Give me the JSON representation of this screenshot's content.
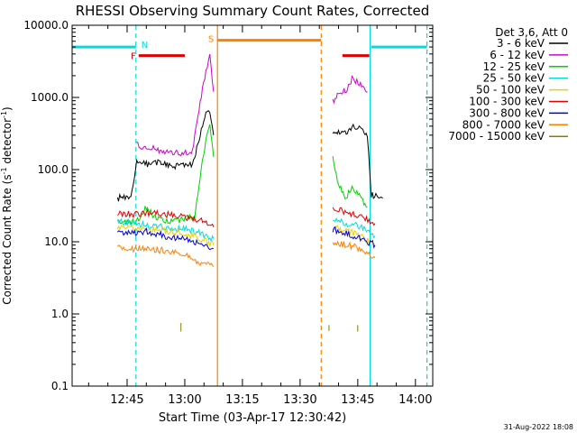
{
  "chart_data": {
    "type": "line",
    "title": "RHESSI Observing Summary Count Rates, Corrected",
    "xlabel": "Start Time (03-Apr-17 12:30:42)",
    "ylabel_main": "Corrected Count Rate (s",
    "ylabel_sup1": "-1",
    "ylabel_mid": " detector",
    "ylabel_sup2": "-1",
    "ylabel_end": ")",
    "yscale": "log",
    "ylim": [
      0.1,
      10000
    ],
    "xlim_minutes": [
      750.7,
      844.5
    ],
    "yticks": [
      "10000.0",
      "1000.0",
      "100.0",
      "10.0",
      "1.0",
      "0.1"
    ],
    "xticks": [
      {
        "label": "12:45",
        "t": 765
      },
      {
        "label": "13:00",
        "t": 780
      },
      {
        "label": "13:15",
        "t": 795
      },
      {
        "label": "13:30",
        "t": 810
      },
      {
        "label": "13:45",
        "t": 825
      },
      {
        "label": "14:00",
        "t": 840
      }
    ],
    "legend_title": "Det 3,6, Att 0",
    "legend_position": "top-right",
    "series": [
      {
        "name": "3 - 6 keV",
        "color": "#000000",
        "segments": [
          [
            [
              762.5,
              40
            ],
            [
              764.5,
              42
            ],
            [
              766,
              40
            ],
            [
              767.5,
              130
            ],
            [
              770,
              120
            ],
            [
              773,
              125
            ],
            [
              776,
              115
            ],
            [
              779,
              110
            ],
            [
              782,
              120
            ],
            [
              784,
              300
            ],
            [
              785.5,
              600
            ],
            [
              786.5,
              680
            ],
            [
              787.5,
              300
            ]
          ],
          [
            [
              818.5,
              300
            ],
            [
              820,
              340
            ],
            [
              822,
              330
            ],
            [
              823.5,
              400
            ],
            [
              826,
              380
            ],
            [
              827.5,
              300
            ],
            [
              828.5,
              45
            ],
            [
              831.5,
              40
            ]
          ]
        ]
      },
      {
        "name": "6 - 12 keV",
        "color": "#d200d2",
        "segments": [
          [
            [
              767.5,
              220
            ],
            [
              770,
              200
            ],
            [
              773,
              190
            ],
            [
              776,
              175
            ],
            [
              779,
              165
            ],
            [
              782,
              180
            ],
            [
              784,
              900
            ],
            [
              785.5,
              2200
            ],
            [
              786.5,
              3800
            ],
            [
              787.5,
              1200
            ]
          ],
          [
            [
              818.5,
              900
            ],
            [
              820,
              1100
            ],
            [
              822,
              1300
            ],
            [
              823.5,
              1800
            ],
            [
              826,
              1500
            ],
            [
              827.5,
              1200
            ]
          ]
        ]
      },
      {
        "name": "12 - 25 keV",
        "color": "#00d200",
        "segments": [
          [
            [
              762.5,
              20
            ],
            [
              766,
              19
            ],
            [
              768,
              20
            ],
            [
              770,
              30
            ],
            [
              772,
              22
            ],
            [
              775,
              20
            ],
            [
              778,
              19
            ],
            [
              781,
              22
            ],
            [
              782.5,
              20
            ],
            [
              784,
              80
            ],
            [
              785.5,
              250
            ],
            [
              786.5,
              420
            ],
            [
              787.5,
              150
            ]
          ],
          [
            [
              818.5,
              150
            ],
            [
              820,
              60
            ],
            [
              822,
              40
            ],
            [
              823.5,
              60
            ],
            [
              826,
              40
            ],
            [
              827.5,
              30
            ]
          ]
        ]
      },
      {
        "name": "25 - 50 keV",
        "color": "#00dcdc",
        "segments": [
          [
            [
              762.5,
              20
            ],
            [
              766,
              18
            ],
            [
              770,
              17
            ],
            [
              775,
              16
            ],
            [
              780,
              15
            ],
            [
              784,
              13
            ],
            [
              787.5,
              11
            ]
          ],
          [
            [
              818.5,
              20
            ],
            [
              822,
              18
            ],
            [
              826,
              16
            ],
            [
              829.5,
              12
            ]
          ]
        ]
      },
      {
        "name": "50 - 100 keV",
        "color": "#e6d200",
        "segments": [
          [
            [
              762.5,
              16
            ],
            [
              766,
              15
            ],
            [
              770,
              15
            ],
            [
              775,
              14
            ],
            [
              780,
              13
            ],
            [
              784,
              11
            ],
            [
              787.5,
              9
            ]
          ],
          [
            [
              818.5,
              16
            ],
            [
              822,
              14
            ],
            [
              826,
              12
            ],
            [
              829.5,
              9
            ]
          ]
        ]
      },
      {
        "name": "100 - 300 keV",
        "color": "#e00000",
        "segments": [
          [
            [
              762.5,
              25
            ],
            [
              766,
              24
            ],
            [
              770,
              25
            ],
            [
              775,
              24
            ],
            [
              780,
              22
            ],
            [
              784,
              20
            ],
            [
              787.5,
              16
            ]
          ],
          [
            [
              818.5,
              30
            ],
            [
              822,
              26
            ],
            [
              826,
              22
            ],
            [
              829.5,
              18
            ]
          ]
        ]
      },
      {
        "name": "300 - 800 keV",
        "color": "#0000e0",
        "segments": [
          [
            [
              762.5,
              14
            ],
            [
              766,
              13
            ],
            [
              770,
              14
            ],
            [
              775,
              12
            ],
            [
              780,
              11
            ],
            [
              784,
              9.5
            ],
            [
              787.5,
              8
            ]
          ],
          [
            [
              818.5,
              15
            ],
            [
              822,
              13
            ],
            [
              826,
              11
            ],
            [
              829.5,
              9
            ]
          ]
        ]
      },
      {
        "name": "800 - 7000 keV",
        "color": "#ff8000",
        "segments": [
          [
            [
              762.5,
              8.5
            ],
            [
              766,
              8
            ],
            [
              770,
              8
            ],
            [
              775,
              7.5
            ],
            [
              780,
              6.5
            ],
            [
              784,
              5
            ],
            [
              787.5,
              4.5
            ]
          ],
          [
            [
              818.5,
              10
            ],
            [
              822,
              9
            ],
            [
              826,
              8
            ],
            [
              829.5,
              6
            ]
          ]
        ]
      },
      {
        "name": "7000 - 15000 keV",
        "color": "#808000",
        "segments": [
          [
            [
              779,
              0.55
            ],
            [
              779,
              0.75
            ]
          ],
          [
            [
              817.5,
              0.55
            ],
            [
              817.5,
              0.7
            ]
          ],
          [
            [
              825,
              0.55
            ],
            [
              825,
              0.7
            ]
          ]
        ]
      }
    ],
    "flag_bars": [
      {
        "label": "",
        "color": "#00dcdc",
        "t0": 750.7,
        "t1": 767.3,
        "value": 5000
      },
      {
        "label": "N",
        "color": "#00dcdc",
        "t0": 767.3,
        "t1": 767.3,
        "value": 5000
      },
      {
        "label": "F",
        "color": "#e00000",
        "t0": 768,
        "t1": 780,
        "value": 3800
      },
      {
        "label": "S",
        "color": "#ff8000",
        "t0": 788.5,
        "t1": 815.5,
        "value": 6200
      },
      {
        "label": "",
        "color": "#e00000",
        "t0": 821,
        "t1": 828,
        "value": 3800
      },
      {
        "label": "",
        "color": "#00dcdc",
        "t0": 828.5,
        "t1": 843,
        "value": 5000
      }
    ],
    "vlines": [
      {
        "t": 767.3,
        "color": "#00dcdc",
        "dash": true
      },
      {
        "t": 788.5,
        "color": "#ff8000",
        "dash": false
      },
      {
        "t": 815.5,
        "color": "#ff8000",
        "dash": true
      },
      {
        "t": 828.2,
        "color": "#00dcdc",
        "dash": false
      },
      {
        "t": 843.0,
        "color": "#00dcdc",
        "dash": true
      }
    ],
    "timestamp": "31-Aug-2022 18:08",
    "grid": false
  }
}
